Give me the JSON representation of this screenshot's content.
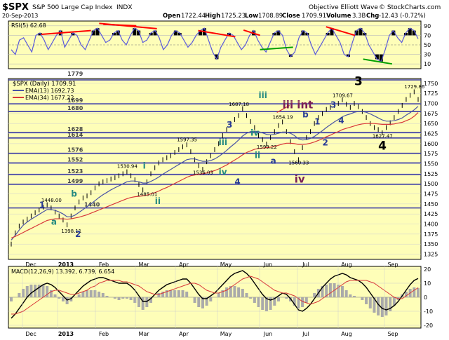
{
  "header": {
    "symbol": "$SPX",
    "name": "S&P 500 Large Cap Index",
    "exchange": "INDX",
    "date": "20-Sep-2013",
    "open_label": "Open",
    "open": "1722.44",
    "high_label": "High",
    "high": "1725.23",
    "low_label": "Low",
    "low": "1708.89",
    "close_label": "Close",
    "close": "1709.91",
    "volume_label": "Volume",
    "volume": "3.3B",
    "chg_label": "Chg",
    "chg": "-12.43 (-0.72%)",
    "source": "Objective Elliott Wave",
    "copyright": "© StockCharts.com"
  },
  "colors": {
    "panel_bg": "#fefeb8",
    "price_line": "#000000",
    "ema13": "#4a54a4",
    "ema34": "#d8383a",
    "rsi": "#5a5adc",
    "support": "#3a3aa6",
    "trend_red": "#ff0000",
    "trend_green": "#00a000",
    "wave_blue": "#283c96",
    "wave_green": "#248a80",
    "wave_purple": "#7a2056",
    "wave_black": "#000000",
    "hist": "#aaaaaa"
  },
  "chart_data": [
    {
      "type": "line",
      "panel": "rsi",
      "title": "RSI(5) 62.68",
      "ylim": [
        0,
        100
      ],
      "ticks": [
        10,
        30,
        50,
        70,
        90
      ],
      "series": [
        {
          "values": [
            40,
            30,
            60,
            65,
            50,
            35,
            70,
            75,
            60,
            40,
            55,
            70,
            80,
            45,
            60,
            75,
            70,
            50,
            40,
            60,
            80,
            85,
            70,
            55,
            60,
            75,
            80,
            60,
            50,
            70,
            85,
            80,
            55,
            60,
            75,
            80,
            65,
            40,
            50,
            70,
            80,
            75,
            60,
            45,
            55,
            70,
            80,
            85,
            60,
            35,
            20,
            45,
            60,
            75,
            70,
            55,
            40,
            50,
            70,
            80,
            60,
            45,
            35,
            55,
            75,
            80,
            70,
            40,
            25,
            35,
            65,
            80,
            75,
            50,
            30,
            45,
            60,
            75,
            85,
            70,
            55,
            30,
            25,
            55,
            80,
            85,
            75,
            50,
            35,
            20,
            15,
            40,
            70,
            80,
            65,
            55,
            75,
            85,
            80,
            62.68
          ]
        }
      ]
    },
    {
      "type": "line",
      "panel": "price",
      "title": "$SPX (Daily) 1709.91",
      "ylim": [
        1312,
        1762
      ],
      "y_ticks": [
        1325,
        1350,
        1375,
        1400,
        1425,
        1450,
        1475,
        1500,
        1525,
        1550,
        1575,
        1600,
        1625,
        1650,
        1675,
        1700,
        1725,
        1750
      ],
      "x_ticks": [
        "Dec",
        "2013",
        "Feb",
        "Mar",
        "Apr",
        "May",
        "Jun",
        "Jul",
        "Aug",
        "Sep"
      ],
      "support_levels": [
        1779,
        1699,
        1680,
        1628,
        1614,
        1576,
        1552,
        1523,
        1499,
        1440
      ],
      "price_labels": [
        "1448.00",
        "1398.11",
        "1530.94",
        "1485.01",
        "1597.35",
        "1536.03",
        "1687.18",
        "1599.22",
        "1654.19",
        "1560.33",
        "1709.67",
        "1627.47",
        "1729.86"
      ],
      "series": [
        {
          "name": "$SPX",
          "values": [
            1350,
            1378,
            1395,
            1405,
            1412,
            1420,
            1428,
            1435,
            1442,
            1448,
            1440,
            1430,
            1420,
            1410,
            1398,
            1420,
            1440,
            1455,
            1465,
            1470,
            1478,
            1490,
            1500,
            1505,
            1508,
            1512,
            1515,
            1520,
            1525,
            1530,
            1520,
            1510,
            1498,
            1485,
            1505,
            1525,
            1540,
            1552,
            1560,
            1565,
            1570,
            1578,
            1585,
            1592,
            1597,
            1580,
            1560,
            1545,
            1536,
            1555,
            1570,
            1585,
            1600,
            1620,
            1635,
            1650,
            1660,
            1670,
            1687,
            1670,
            1655,
            1640,
            1620,
            1610,
            1599,
            1615,
            1630,
            1645,
            1654,
            1630,
            1605,
            1580,
            1560,
            1590,
            1615,
            1630,
            1650,
            1665,
            1675,
            1685,
            1690,
            1695,
            1700,
            1709,
            1698,
            1690,
            1700,
            1692,
            1680,
            1665,
            1650,
            1640,
            1635,
            1627,
            1640,
            1652,
            1665,
            1680,
            1695,
            1710,
            1720,
            1729,
            1709.91
          ]
        },
        {
          "name": "EMA(13) 1692.73",
          "values": [
            1360,
            1372,
            1385,
            1397,
            1405,
            1412,
            1418,
            1424,
            1430,
            1436,
            1436,
            1434,
            1430,
            1425,
            1418,
            1418,
            1422,
            1429,
            1436,
            1443,
            1450,
            1458,
            1466,
            1473,
            1479,
            1485,
            1490,
            1495,
            1500,
            1505,
            1507,
            1507,
            1505,
            1502,
            1502,
            1506,
            1511,
            1517,
            1524,
            1530,
            1536,
            1542,
            1548,
            1554,
            1560,
            1562,
            1562,
            1559,
            1556,
            1556,
            1558,
            1562,
            1568,
            1575,
            1583,
            1592,
            1600,
            1609,
            1619,
            1626,
            1630,
            1631,
            1630,
            1627,
            1623,
            1622,
            1623,
            1626,
            1629,
            1629,
            1626,
            1620,
            1612,
            1609,
            1610,
            1613,
            1618,
            1625,
            1632,
            1640,
            1647,
            1654,
            1660,
            1667,
            1671,
            1674,
            1678,
            1680,
            1680,
            1678,
            1674,
            1669,
            1664,
            1659,
            1656,
            1656,
            1657,
            1660,
            1664,
            1671,
            1677,
            1684,
            1692.73
          ]
        },
        {
          "name": "EMA(34) 1677.22",
          "values": [
            1365,
            1369,
            1374,
            1379,
            1384,
            1389,
            1394,
            1399,
            1404,
            1409,
            1411,
            1413,
            1413,
            1413,
            1412,
            1413,
            1415,
            1417,
            1420,
            1423,
            1427,
            1431,
            1435,
            1439,
            1443,
            1447,
            1451,
            1455,
            1459,
            1463,
            1466,
            1468,
            1469,
            1470,
            1472,
            1475,
            1478,
            1482,
            1487,
            1491,
            1496,
            1501,
            1506,
            1511,
            1516,
            1520,
            1522,
            1524,
            1525,
            1527,
            1530,
            1533,
            1537,
            1542,
            1547,
            1553,
            1559,
            1565,
            1572,
            1578,
            1582,
            1586,
            1588,
            1589,
            1590,
            1591,
            1593,
            1596,
            1599,
            1601,
            1601,
            1600,
            1598,
            1598,
            1599,
            1601,
            1604,
            1608,
            1612,
            1617,
            1621,
            1626,
            1630,
            1635,
            1638,
            1641,
            1644,
            1647,
            1649,
            1650,
            1650,
            1650,
            1649,
            1648,
            1648,
            1648,
            1649,
            1651,
            1653,
            1657,
            1661,
            1668,
            1677.22
          ]
        }
      ]
    },
    {
      "type": "line",
      "panel": "macd",
      "title": "MACD(12,26,9) 13.392, 6.739, 6.654",
      "ylim": [
        -22,
        22
      ],
      "ticks": [
        -20,
        -10,
        0,
        10,
        20
      ],
      "series": [
        {
          "name": "MACD",
          "values": [
            -15,
            -12,
            -8,
            -4,
            0,
            3,
            5,
            7,
            9,
            10,
            9,
            7,
            4,
            1,
            -2,
            -1,
            2,
            5,
            8,
            10,
            12,
            13,
            14,
            14,
            13,
            12,
            11,
            10,
            10,
            10,
            8,
            5,
            1,
            -3,
            -3,
            -1,
            2,
            5,
            7,
            9,
            10,
            11,
            12,
            13,
            13,
            10,
            6,
            2,
            -1,
            -1,
            1,
            3,
            6,
            9,
            12,
            15,
            17,
            18,
            19,
            17,
            14,
            10,
            6,
            2,
            -1,
            -2,
            -1,
            1,
            3,
            2,
            -1,
            -5,
            -9,
            -10,
            -8,
            -5,
            -1,
            3,
            7,
            10,
            13,
            15,
            16,
            17,
            16,
            14,
            13,
            12,
            10,
            7,
            3,
            -1,
            -5,
            -8,
            -9,
            -8,
            -6,
            -3,
            1,
            5,
            9,
            12,
            13.392
          ]
        },
        {
          "name": "Signal",
          "values": [
            -12,
            -12,
            -11,
            -10,
            -8,
            -6,
            -4,
            -2,
            0,
            2,
            4,
            5,
            5,
            4,
            3,
            2,
            2,
            3,
            4,
            5,
            7,
            8,
            10,
            11,
            12,
            12,
            12,
            12,
            11,
            11,
            10,
            9,
            8,
            6,
            4,
            3,
            2,
            2,
            3,
            4,
            5,
            6,
            7,
            8,
            9,
            10,
            10,
            9,
            7,
            5,
            4,
            3,
            3,
            4,
            5,
            7,
            9,
            11,
            13,
            14,
            15,
            14,
            13,
            11,
            9,
            7,
            5,
            4,
            3,
            3,
            2,
            1,
            -1,
            -3,
            -4,
            -5,
            -4,
            -3,
            -1,
            1,
            3,
            5,
            7,
            9,
            11,
            12,
            12,
            12,
            12,
            12,
            11,
            10,
            8,
            6,
            4,
            2,
            0,
            -1,
            -1,
            1,
            3,
            5,
            6.739
          ]
        }
      ]
    }
  ],
  "panels": {
    "rsi": {
      "title": "RSI(5) 62.68"
    },
    "price": {
      "title": "$SPX (Daily) 1709.91",
      "ema13_label": "EMA(13) 1692.73",
      "ema34_label": "EMA(34) 1677.22"
    },
    "macd": {
      "title": "MACD(12,26,9) 13.392, 6.739, 6.654"
    }
  },
  "wave_labels": [
    {
      "text": "1",
      "color": "wave_blue",
      "size": "m"
    },
    {
      "text": "a",
      "color": "wave_green",
      "size": "m"
    },
    {
      "text": "b",
      "color": "wave_green",
      "size": "m"
    },
    {
      "text": "2",
      "color": "wave_blue",
      "size": "m"
    },
    {
      "text": "i",
      "color": "wave_green",
      "size": "m"
    },
    {
      "text": "ii",
      "color": "wave_green",
      "size": "m"
    },
    {
      "text": "iii",
      "color": "wave_green",
      "size": "m"
    },
    {
      "text": "iv",
      "color": "wave_green",
      "size": "m"
    },
    {
      "text": "3",
      "color": "wave_blue",
      "size": "m"
    },
    {
      "text": "4",
      "color": "wave_blue",
      "size": "m"
    },
    {
      "text": "i",
      "color": "wave_green",
      "size": "m"
    },
    {
      "text": "ii",
      "color": "wave_green",
      "size": "m"
    },
    {
      "text": "iii",
      "color": "wave_green",
      "size": "m"
    },
    {
      "text": "iv",
      "color": "wave_green",
      "size": "m"
    },
    {
      "text": "iii int",
      "color": "wave_purple",
      "size": "l"
    },
    {
      "text": "a",
      "color": "wave_blue",
      "size": "m"
    },
    {
      "text": "iv",
      "color": "wave_purple",
      "size": "l"
    },
    {
      "text": "b",
      "color": "wave_blue",
      "size": "m"
    },
    {
      "text": "1",
      "color": "wave_blue",
      "size": "m"
    },
    {
      "text": "2",
      "color": "wave_blue",
      "size": "m"
    },
    {
      "text": "3",
      "color": "wave_blue",
      "size": "m"
    },
    {
      "text": "4",
      "color": "wave_blue",
      "size": "m"
    },
    {
      "text": "3",
      "color": "wave_black",
      "size": "xl"
    },
    {
      "text": "4",
      "color": "wave_black",
      "size": "xl"
    }
  ],
  "bottom_axis": {
    "labels": [
      "Dec",
      "2013",
      "Feb",
      "Mar",
      "Apr",
      "May",
      "Jun",
      "Jul",
      "Aug",
      "Sep"
    ]
  }
}
